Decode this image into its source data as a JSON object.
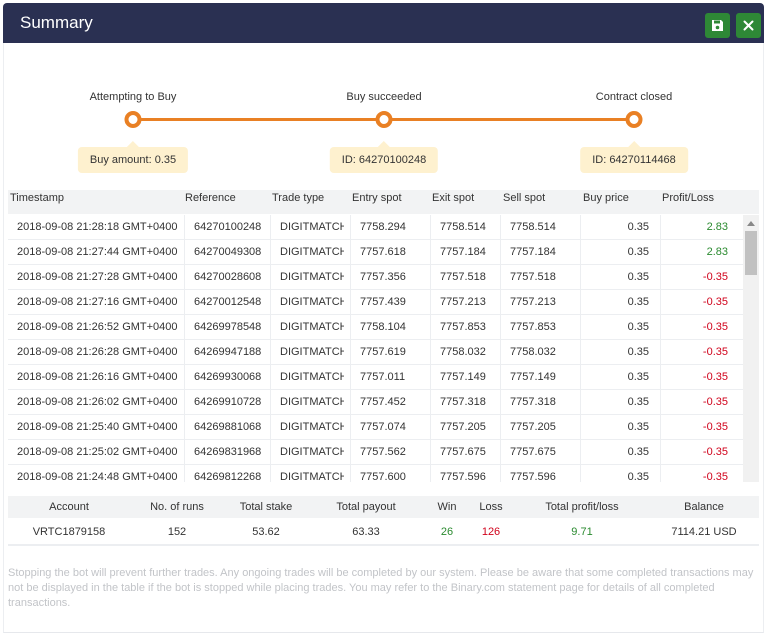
{
  "window": {
    "title": "Summary",
    "save_icon": "save-icon",
    "close_icon": "close-icon",
    "accent": "#2e8836",
    "header_bg": "#2a3052"
  },
  "journey": {
    "steps": [
      {
        "label": "Attempting to Buy",
        "info": "Buy amount: 0.35"
      },
      {
        "label": "Buy succeeded",
        "info": "ID: 64270100248"
      },
      {
        "label": "Contract closed",
        "info": "ID: 64270114468"
      }
    ],
    "color": "#e98024"
  },
  "transactions": {
    "headers": [
      "Timestamp",
      "Reference",
      "Trade type",
      "Entry spot",
      "Exit spot",
      "Sell spot",
      "Buy price",
      "Profit/Loss"
    ],
    "rows": [
      [
        "2018-09-08 21:28:18 GMT+0400",
        "64270100248",
        "DIGITMATCH",
        "7758.294",
        "7758.514",
        "7758.514",
        "0.35",
        "2.83"
      ],
      [
        "2018-09-08 21:27:44 GMT+0400",
        "64270049308",
        "DIGITMATCH",
        "7757.618",
        "7757.184",
        "7757.184",
        "0.35",
        "2.83"
      ],
      [
        "2018-09-08 21:27:28 GMT+0400",
        "64270028608",
        "DIGITMATCH",
        "7757.356",
        "7757.518",
        "7757.518",
        "0.35",
        "-0.35"
      ],
      [
        "2018-09-08 21:27:16 GMT+0400",
        "64270012548",
        "DIGITMATCH",
        "7757.439",
        "7757.213",
        "7757.213",
        "0.35",
        "-0.35"
      ],
      [
        "2018-09-08 21:26:52 GMT+0400",
        "64269978548",
        "DIGITMATCH",
        "7758.104",
        "7757.853",
        "7757.853",
        "0.35",
        "-0.35"
      ],
      [
        "2018-09-08 21:26:28 GMT+0400",
        "64269947188",
        "DIGITMATCH",
        "7757.619",
        "7758.032",
        "7758.032",
        "0.35",
        "-0.35"
      ],
      [
        "2018-09-08 21:26:16 GMT+0400",
        "64269930068",
        "DIGITMATCH",
        "7757.011",
        "7757.149",
        "7757.149",
        "0.35",
        "-0.35"
      ],
      [
        "2018-09-08 21:26:02 GMT+0400",
        "64269910728",
        "DIGITMATCH",
        "7757.452",
        "7757.318",
        "7757.318",
        "0.35",
        "-0.35"
      ],
      [
        "2018-09-08 21:25:40 GMT+0400",
        "64269881068",
        "DIGITMATCH",
        "7757.074",
        "7757.205",
        "7757.205",
        "0.35",
        "-0.35"
      ],
      [
        "2018-09-08 21:25:02 GMT+0400",
        "64269831968",
        "DIGITMATCH",
        "7757.562",
        "7757.675",
        "7757.675",
        "0.35",
        "-0.35"
      ],
      [
        "2018-09-08 21:24:48 GMT+0400",
        "64269812268",
        "DIGITMATCH",
        "7757.600",
        "7757.596",
        "7757.596",
        "0.35",
        "-0.35"
      ]
    ],
    "profit_color": "#2a8a2f",
    "loss_color": "#d0021b"
  },
  "stats": {
    "headers": [
      "Account",
      "No. of runs",
      "Total stake",
      "Total payout",
      "Win",
      "Loss",
      "Total profit/loss",
      "Balance"
    ],
    "values": [
      "VRTC1879158",
      "152",
      "53.62",
      "63.33",
      "26",
      "126",
      "9.71",
      "7114.21 USD"
    ]
  },
  "disclaimer": "Stopping the bot will prevent further trades. Any ongoing trades will be completed by our system. Please be aware that some completed transactions may not be displayed in the table if the bot is stopped while placing trades. You may refer to the Binary.com statement page for details of all completed transactions."
}
